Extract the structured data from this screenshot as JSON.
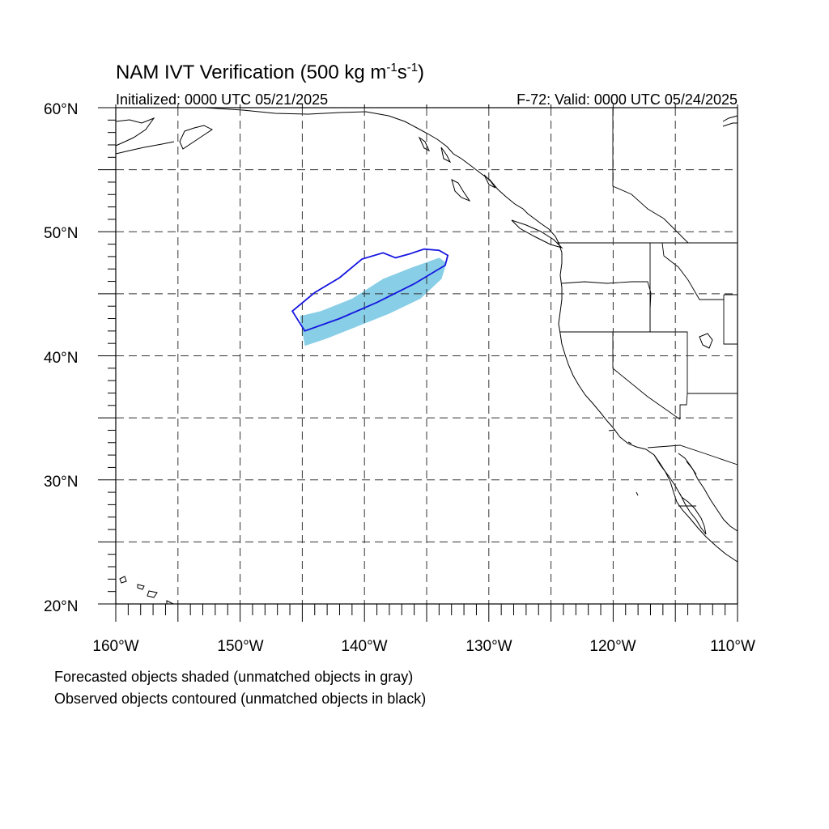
{
  "title": {
    "main": "NAM IVT Verification (500 kg m",
    "exp1": "-1",
    "unit_s": "s",
    "exp2": "-1",
    "close": ")"
  },
  "initialized": "Initialized: 0000 UTC 05/21/2025",
  "valid": "F-72: Valid: 0000 UTC 05/24/2025",
  "lat_labels": [
    "60°N",
    "50°N",
    "40°N",
    "30°N",
    "20°N"
  ],
  "lon_labels": [
    "160°W",
    "150°W",
    "140°W",
    "130°W",
    "120°W",
    "110°W"
  ],
  "notes": [
    "Forecasted objects shaded (unmatched objects in gray)",
    "Observed objects contoured (unmatched objects in black)"
  ],
  "map": {
    "lat_range": [
      20,
      60
    ],
    "lon_range": [
      -160,
      -110
    ],
    "grid_interval_deg": 5,
    "forecast_fill_color": "#87CEE6",
    "observed_contour_color": "#1515E0",
    "forecast_object": [
      [
        -144.8,
        40.8
      ],
      [
        -145.2,
        43.2
      ],
      [
        -143.5,
        43.6
      ],
      [
        -141,
        44.6
      ],
      [
        -138.5,
        46.2
      ],
      [
        -136.5,
        47
      ],
      [
        -134,
        47.9
      ],
      [
        -133.4,
        47.5
      ],
      [
        -133.8,
        46.2
      ],
      [
        -135.5,
        44.6
      ],
      [
        -138,
        43.4
      ],
      [
        -140.5,
        42.4
      ],
      [
        -143,
        41.4
      ]
    ],
    "observed_object": [
      [
        -145.8,
        43.6
      ],
      [
        -144.8,
        42
      ],
      [
        -142,
        43
      ],
      [
        -139,
        44.3
      ],
      [
        -136,
        45.8
      ],
      [
        -133.5,
        47.3
      ],
      [
        -133.3,
        48.1
      ],
      [
        -134,
        48.5
      ],
      [
        -135.2,
        48.6
      ],
      [
        -136.4,
        48.2
      ],
      [
        -137.5,
        47.9
      ],
      [
        -138.5,
        48.3
      ],
      [
        -140.2,
        47.8
      ],
      [
        -142,
        46.3
      ],
      [
        -144,
        45.1
      ]
    ]
  }
}
